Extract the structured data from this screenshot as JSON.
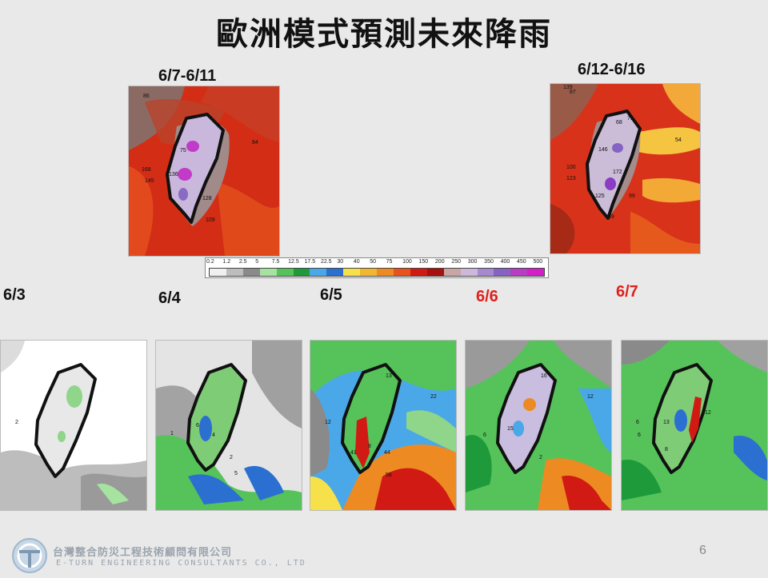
{
  "title": "歐洲模式預測未來降雨",
  "colors": {
    "date_red": "#e0201b"
  },
  "period_maps": [
    {
      "label": "6/7-6/11",
      "numbers": [
        "86",
        "84",
        "75",
        "168",
        "145",
        "136",
        "128",
        "109"
      ]
    },
    {
      "label": "6/12-6/16",
      "numbers": [
        "139",
        "87",
        "71",
        "68",
        "146",
        "100",
        "123",
        "172",
        "125",
        "99",
        "54",
        "69"
      ]
    }
  ],
  "legend": {
    "ticks": [
      "0.2",
      "1.2",
      "2.5",
      "5",
      "7.5",
      "12.5",
      "17.5",
      "22.5",
      "30",
      "40",
      "50",
      "75",
      "100",
      "150",
      "200",
      "250",
      "300",
      "350",
      "400",
      "450",
      "500"
    ],
    "colors": [
      "#f0f0f0",
      "#bdbdbd",
      "#8a8a8a",
      "#a6e3a0",
      "#55c35a",
      "#1f9a3b",
      "#4aa8e8",
      "#2b6fd1",
      "#f7e14a",
      "#f2b732",
      "#ee8a22",
      "#e8521c",
      "#d11a14",
      "#a8120e",
      "#c9a6a6",
      "#cdb8dc",
      "#a58ad0",
      "#8663c2",
      "#b83cc4",
      "#d21fc8"
    ]
  },
  "daily_maps": [
    {
      "label": "6/3",
      "highlight": false,
      "numbers": [
        "2"
      ]
    },
    {
      "label": "6/4",
      "highlight": false,
      "numbers": [
        "1",
        "6",
        "4",
        "2",
        "5"
      ]
    },
    {
      "label": "6/5",
      "highlight": false,
      "numbers": [
        "13",
        "22",
        "12",
        "41",
        "44",
        "56",
        "8"
      ]
    },
    {
      "label": "6/6",
      "highlight": true,
      "numbers": [
        "16",
        "15",
        "12",
        "6",
        "2"
      ]
    },
    {
      "label": "6/7",
      "highlight": true,
      "numbers": [
        "13",
        "6",
        "8",
        "12",
        "6"
      ]
    }
  ],
  "footer": {
    "company_cn": "台灣整合防災工程技術顧問有限公司",
    "company_en": "E-TURN ENGINEERING CONSULTANTS CO., LTD",
    "page_number": "6"
  }
}
